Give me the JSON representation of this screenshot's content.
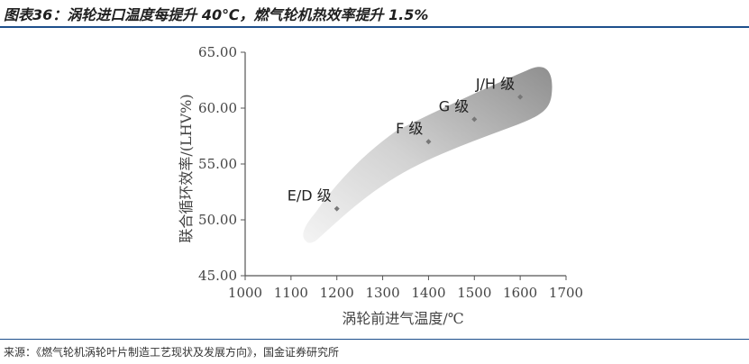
{
  "header": {
    "title": "图表36：涡轮进口温度每提升 40℃，燃气轮机热效率提升 1.5%"
  },
  "footer": {
    "source": "来源：《燃气轮机涡轮叶片制造工艺现状及发展方向》，国金证券研究所"
  },
  "colors": {
    "rule": "#1e4f8c",
    "axis": "#555555",
    "marker": "#777777",
    "band_dark": "#8a8a8a",
    "band_light": "#f2f2f2"
  },
  "chart_data": {
    "type": "scatter",
    "xlabel": "涡轮前进气温度/℃",
    "ylabel": "联合循环效率/(LHV%)",
    "xlim": [
      1000,
      1700
    ],
    "ylim": [
      45,
      65
    ],
    "x_ticks": [
      "1000",
      "1100",
      "1200",
      "1300",
      "1400",
      "1500",
      "1600",
      "1700"
    ],
    "y_ticks": [
      "45.00",
      "50.00",
      "55.00",
      "60.00",
      "65.00"
    ],
    "grid": false,
    "shaded_band": true,
    "points": [
      {
        "label": "E/D 级",
        "x": 1200,
        "y": 51.0
      },
      {
        "label": "F 级",
        "x": 1400,
        "y": 57.0
      },
      {
        "label": "G 级",
        "x": 1500,
        "y": 59.0
      },
      {
        "label": "J/H 级",
        "x": 1600,
        "y": 61.0
      }
    ]
  }
}
